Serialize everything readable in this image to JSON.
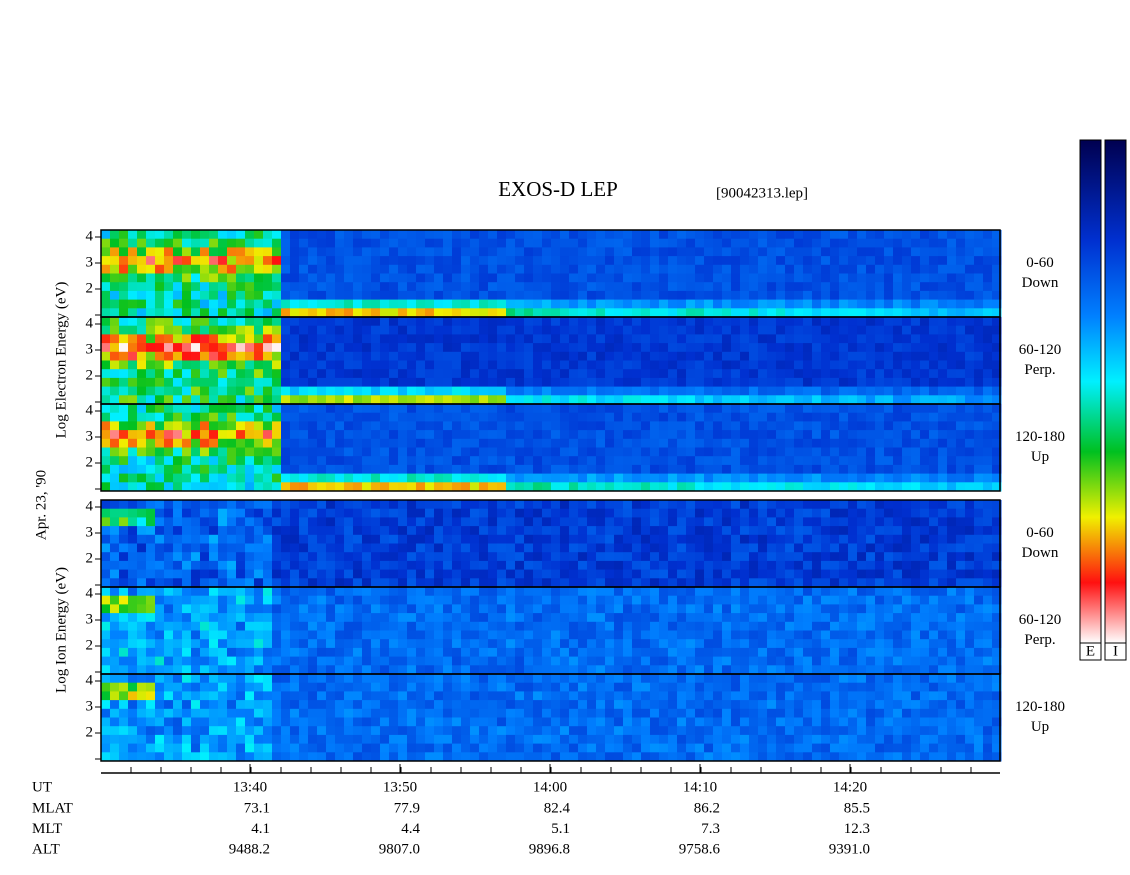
{
  "title": "EXOS-D LEP",
  "file": "[90042313.lep]",
  "date": "Apr. 23, '90",
  "groups": [
    {
      "ylabel": "Log Electron Energy (eV)",
      "panels": [
        {
          "pitch": "0-60",
          "direction": "Down",
          "yticks": [
            2,
            3,
            4
          ]
        },
        {
          "pitch": "60-120",
          "direction": "Perp.",
          "yticks": [
            2,
            3,
            4
          ]
        },
        {
          "pitch": "120-180",
          "direction": "Up",
          "yticks": [
            2,
            3,
            4
          ]
        }
      ]
    },
    {
      "ylabel": "Log Ion Energy (eV)",
      "panels": [
        {
          "pitch": "0-60",
          "direction": "Down",
          "yticks": [
            2,
            3,
            4
          ]
        },
        {
          "pitch": "60-120",
          "direction": "Perp.",
          "yticks": [
            2,
            3,
            4
          ]
        },
        {
          "pitch": "120-180",
          "direction": "Up",
          "yticks": [
            2,
            3,
            4
          ]
        }
      ]
    }
  ],
  "time_axis": {
    "label": "UT",
    "ticks": [
      "13:40",
      "13:50",
      "14:00",
      "14:10",
      "14:20"
    ]
  },
  "ephemeris": [
    {
      "label": "MLAT",
      "values": [
        "73.1",
        "77.9",
        "82.4",
        "86.2",
        "85.5"
      ]
    },
    {
      "label": "MLT",
      "values": [
        "4.1",
        "4.4",
        "5.1",
        "7.3",
        "12.3"
      ]
    },
    {
      "label": "ALT",
      "values": [
        "9488.2",
        "9807.0",
        "9896.8",
        "9758.6",
        "9391.0"
      ]
    }
  ],
  "colorbars": [
    "E",
    "I"
  ]
}
